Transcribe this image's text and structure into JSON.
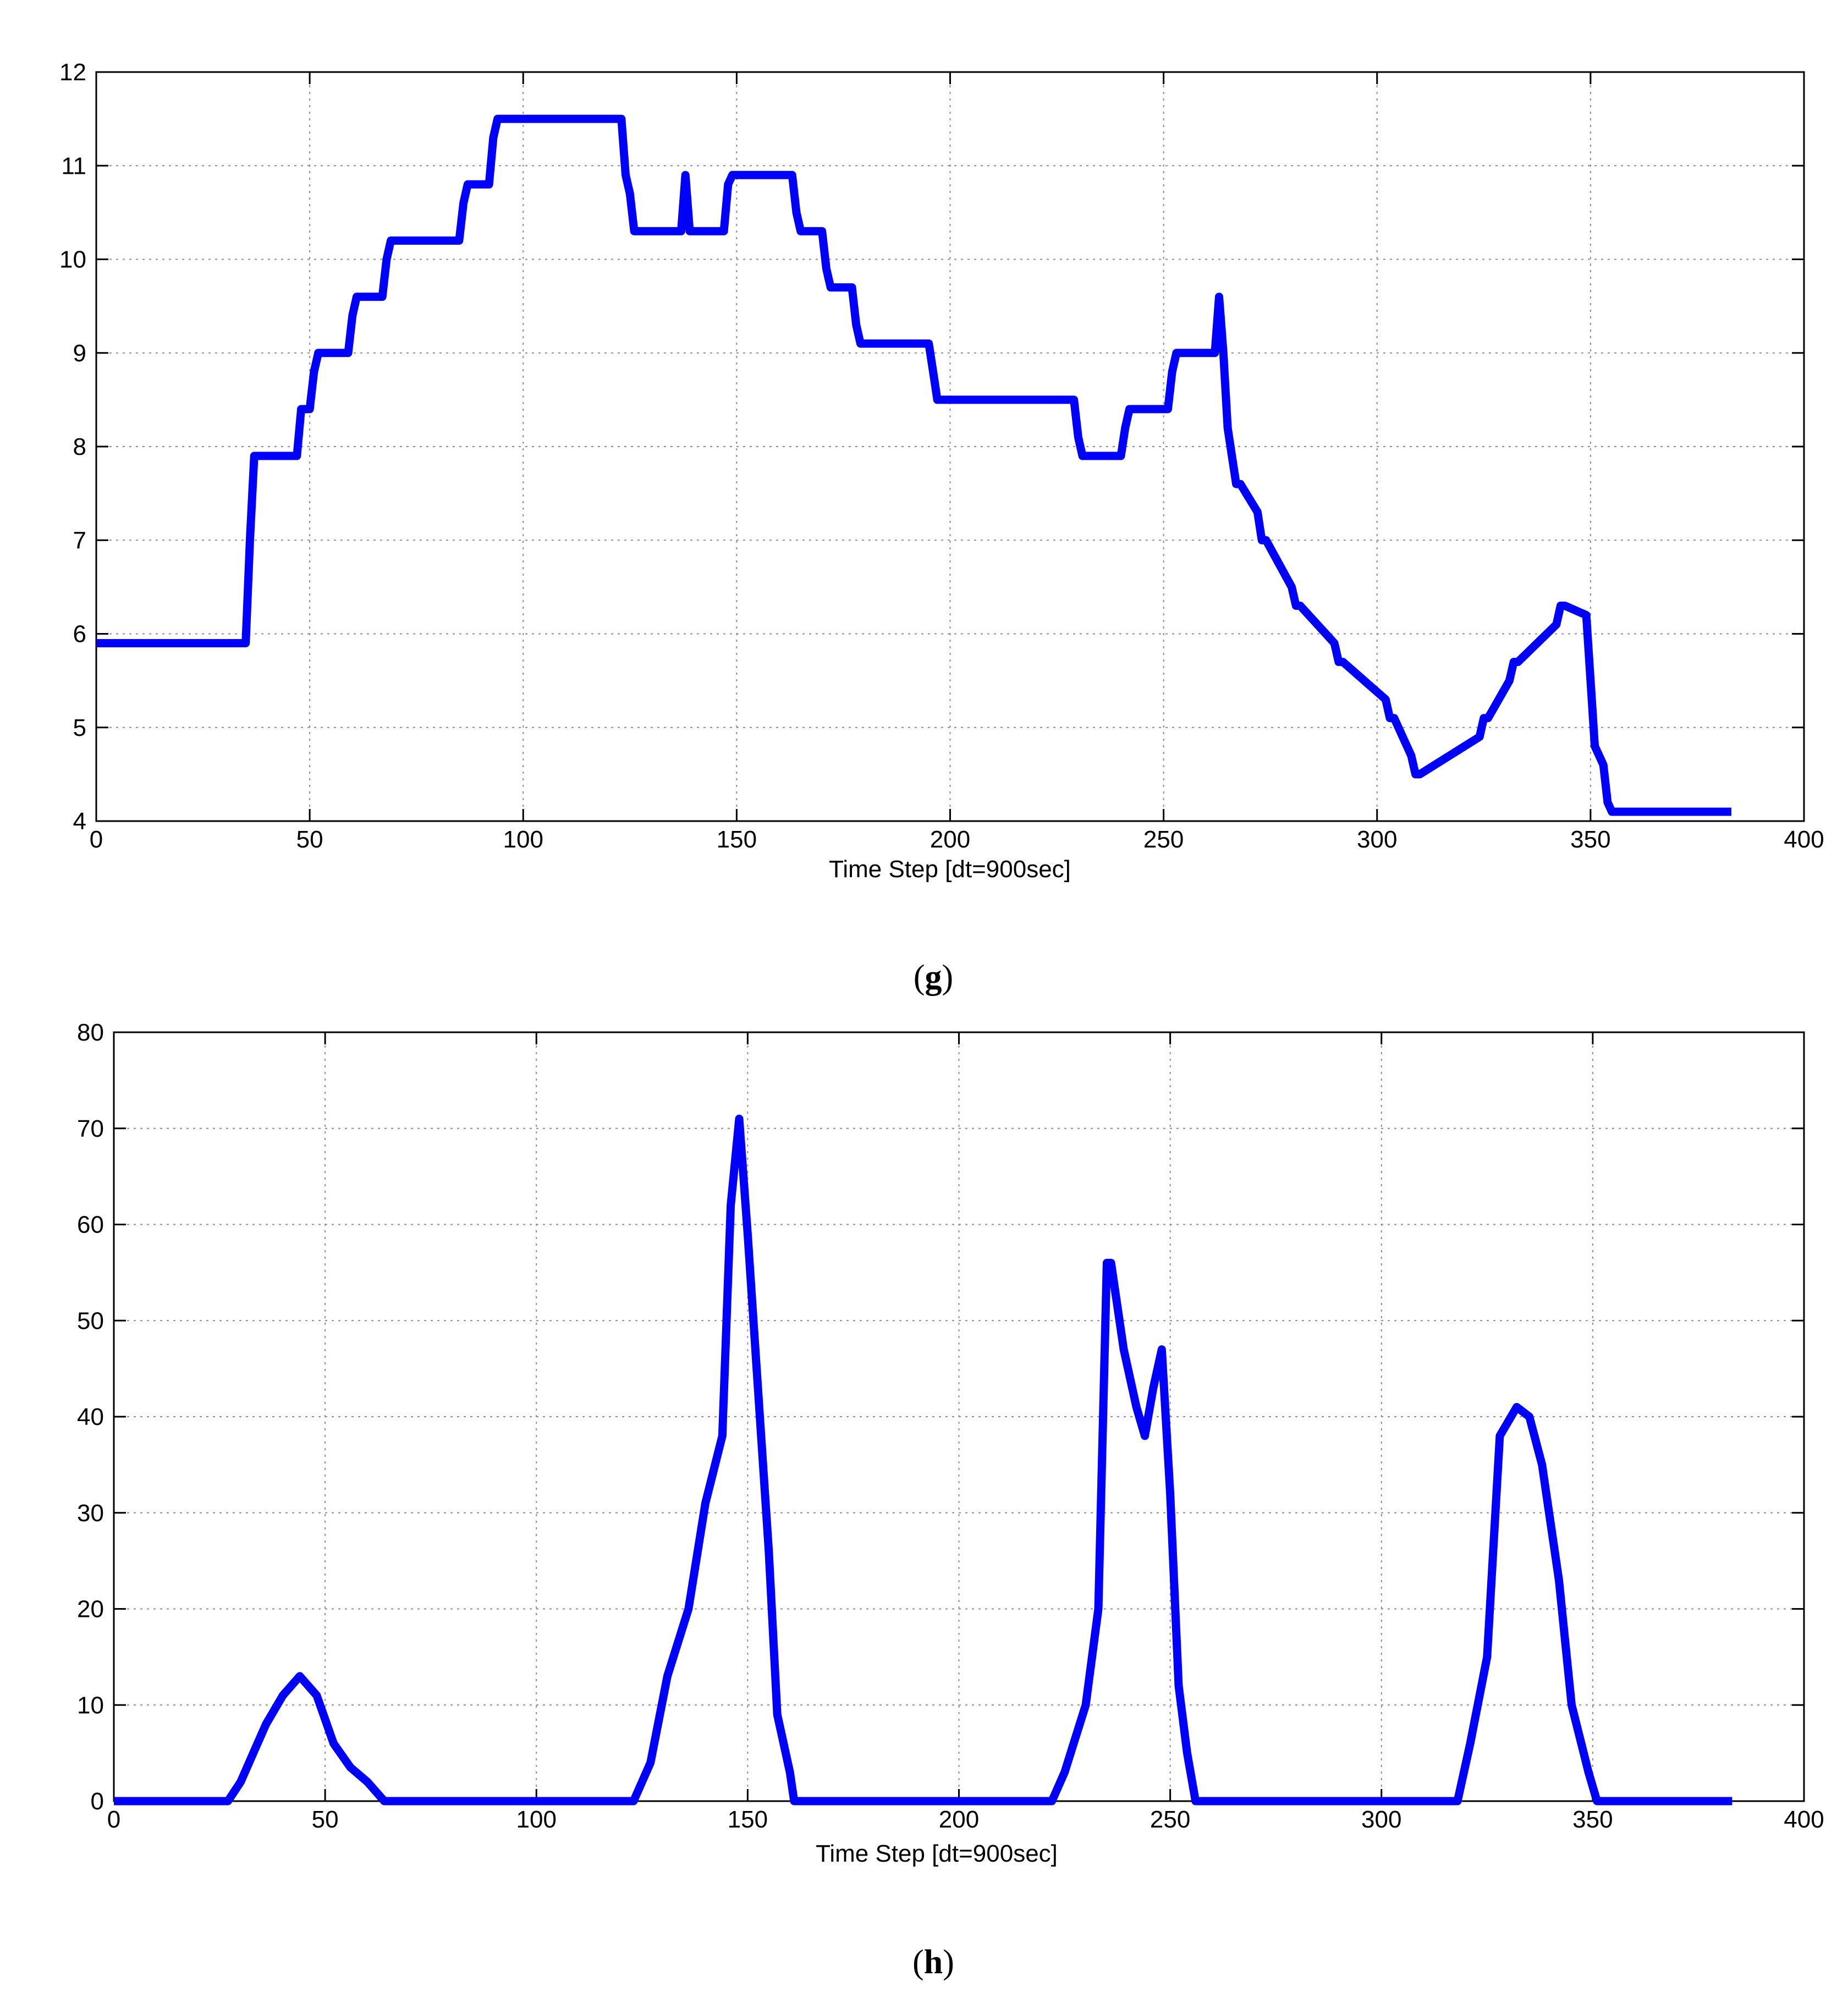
{
  "panels": [
    {
      "caption_letter": "g"
    },
    {
      "caption_letter": "h"
    }
  ],
  "chart_data": [
    {
      "type": "line",
      "xlabel": "Time Step [dt=900sec]",
      "ylabel": "",
      "xlim": [
        0,
        400
      ],
      "ylim": [
        4,
        12
      ],
      "xticks": [
        0,
        50,
        100,
        150,
        200,
        250,
        300,
        350,
        400
      ],
      "yticks": [
        4,
        5,
        6,
        7,
        8,
        9,
        10,
        11,
        12
      ],
      "grid": true,
      "color": "#0000ff",
      "series": [
        {
          "x": [
            0,
            35,
            36,
            37,
            47,
            48,
            50,
            51,
            52,
            59,
            60,
            61,
            67,
            68,
            69,
            85,
            86,
            87,
            92,
            93,
            94,
            123,
            124,
            125,
            126,
            137,
            138,
            139,
            140,
            147,
            148,
            149,
            163,
            164,
            165,
            170,
            171,
            172,
            177,
            178,
            179,
            195,
            196,
            197,
            229,
            230,
            231,
            240,
            241,
            242,
            251,
            252,
            253,
            262,
            263,
            264,
            265,
            266,
            267,
            268,
            272,
            273,
            274,
            280,
            281,
            282,
            290,
            291,
            292,
            302,
            303,
            304,
            308,
            309,
            310,
            324,
            325,
            326,
            331,
            332,
            333,
            342,
            343,
            344,
            349,
            350,
            351,
            352,
            353,
            354,
            355,
            356,
            357,
            383
          ],
          "y": [
            5.9,
            5.9,
            7.0,
            7.9,
            7.9,
            8.4,
            8.4,
            8.8,
            9.0,
            9.0,
            9.4,
            9.6,
            9.6,
            10.0,
            10.2,
            10.2,
            10.6,
            10.8,
            10.8,
            11.3,
            11.5,
            11.5,
            10.9,
            10.7,
            10.3,
            10.3,
            10.9,
            10.3,
            10.3,
            10.3,
            10.8,
            10.9,
            10.9,
            10.5,
            10.3,
            10.3,
            9.9,
            9.7,
            9.7,
            9.3,
            9.1,
            9.1,
            8.8,
            8.5,
            8.5,
            8.1,
            7.9,
            7.9,
            8.2,
            8.4,
            8.4,
            8.8,
            9.0,
            9.0,
            9.6,
            9.0,
            8.2,
            7.9,
            7.6,
            7.6,
            7.3,
            7.0,
            7.0,
            6.5,
            6.3,
            6.3,
            5.9,
            5.7,
            5.7,
            5.3,
            5.1,
            5.1,
            4.7,
            4.5,
            4.5,
            4.9,
            5.1,
            5.1,
            5.5,
            5.7,
            5.7,
            6.1,
            6.3,
            6.3,
            6.2,
            5.5,
            4.8,
            4.7,
            4.6,
            4.2,
            4.1,
            4.1,
            4.1,
            4.1
          ]
        }
      ]
    },
    {
      "type": "line",
      "xlabel": "Time Step [dt=900sec]",
      "ylabel": "",
      "xlim": [
        0,
        400
      ],
      "ylim": [
        0,
        80
      ],
      "xticks": [
        0,
        50,
        100,
        150,
        200,
        250,
        300,
        350,
        400
      ],
      "yticks": [
        0,
        10,
        20,
        30,
        40,
        50,
        60,
        70,
        80
      ],
      "grid": true,
      "color": "#0000ff",
      "series": [
        {
          "x": [
            0,
            27,
            30,
            33,
            36,
            40,
            44,
            48,
            52,
            56,
            60,
            64,
            65,
            123,
            127,
            131,
            136,
            140,
            144,
            146,
            148,
            150,
            155,
            157,
            160,
            161,
            219,
            222,
            225,
            230,
            233,
            235,
            236,
            239,
            242,
            244,
            246,
            248,
            250,
            252,
            254,
            256,
            257,
            315,
            318,
            321,
            325,
            328,
            332,
            335,
            338,
            342,
            345,
            349,
            351,
            383
          ],
          "y": [
            0,
            0,
            2,
            5,
            8,
            11,
            13,
            11,
            6,
            3.5,
            2,
            0,
            0,
            0,
            4,
            13,
            20,
            31,
            38,
            62,
            71,
            59,
            26,
            9,
            3,
            0,
            0,
            0,
            3,
            10,
            20,
            56,
            56,
            47,
            41,
            38,
            43,
            47,
            32,
            12,
            5,
            0,
            0,
            0,
            0,
            6,
            15,
            38,
            41,
            40,
            35,
            23,
            10,
            3,
            0,
            0
          ]
        }
      ]
    }
  ]
}
